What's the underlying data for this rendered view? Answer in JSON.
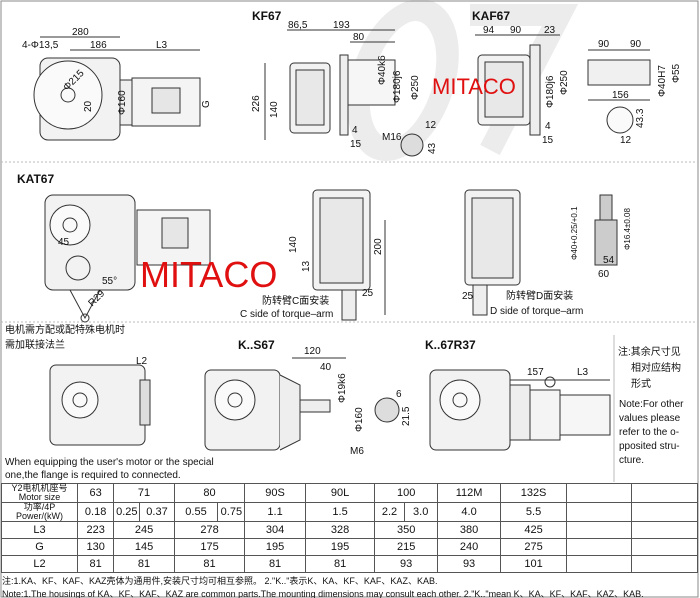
{
  "watermark": "07",
  "brand_overlay": {
    "top": "MITACO",
    "middle": "MITACO"
  },
  "main_view": {
    "d280": "280",
    "holes": "4-Φ13,5",
    "d186": "186",
    "l3": "L3",
    "phi215": "Φ215",
    "d20": "20",
    "phi160": "Φ160",
    "g": "G"
  },
  "kf67": {
    "title": "KF67",
    "d86": "86,5",
    "d193": "193",
    "d80": "80",
    "d226": "226",
    "d140": "140",
    "phi40": "Φ40k6",
    "phi180": "Φ180j6",
    "phi250": "Φ250",
    "d4": "4",
    "d15": "15",
    "m16": "M16",
    "d12": "12",
    "d43": "43"
  },
  "kaf67": {
    "title": "KAF67",
    "d94": "94",
    "d90": "90",
    "d23": "23",
    "phi180": "Φ180j6",
    "phi250": "Φ250",
    "d4": "4",
    "d15": "15",
    "s90a": "90",
    "s90b": "90",
    "phi40h7": "Φ40H7",
    "phi55": "Φ55",
    "d156": "156",
    "d43_3": "43.3",
    "d12": "12"
  },
  "kat67": {
    "title": "KAT67",
    "d45": "45",
    "r29": "R29",
    "a55": "55°",
    "d140": "140",
    "d13": "13",
    "d200": "200",
    "d25c": "25",
    "c_side_cn": "防转臂C面安装",
    "c_side_en": "C side of torque–arm",
    "d25d": "25",
    "d_side_cn": "防转臂D面安装",
    "d_side_en": "D side of torque–arm",
    "phi40": "Φ40+0.25/+0.1",
    "phi16": "Φ16.4±0.08",
    "d54": "54",
    "d60": "60"
  },
  "flange_note": {
    "cn1": "电机需方配或配特殊电机时",
    "cn2": "需加联接法兰",
    "l2": "L2",
    "en1": "When equipping the user's motor or the special",
    "en2": "one,the flange is required to connected."
  },
  "ks67": {
    "title": "K..S67",
    "d120": "120",
    "d40": "40",
    "phi19": "Φ19k6",
    "phi160": "Φ160",
    "m6": "M6",
    "d6": "6",
    "d21": "21.5"
  },
  "k67r37": {
    "title": "K..67R37",
    "d157": "157",
    "l3": "L3"
  },
  "side_note": {
    "cn1": "注:其余尺寸见",
    "cn2": "相对应结构",
    "cn3": "形式",
    "en1": "Note:For other",
    "en2": "values please",
    "en3": "refer to the o-",
    "en4": "pposited stru-",
    "en5": "cture."
  },
  "table": {
    "motor_size_label": "Y2电机机座号 Motor size",
    "power_label": "功率/4P Power/(kW)",
    "motor_sizes": [
      "63",
      "71",
      "80",
      "90S",
      "90L",
      "100",
      "112M",
      "132S"
    ],
    "powers": [
      "0.18",
      "0.25",
      "0.37",
      "0.55",
      "0.75",
      "1.1",
      "1.5",
      "2.2",
      "3.0",
      "4.0",
      "5.5"
    ],
    "rows": [
      {
        "label": "L3",
        "values": [
          "223",
          "245",
          "278",
          "304",
          "328",
          "350",
          "380",
          "425"
        ]
      },
      {
        "label": "G",
        "values": [
          "130",
          "145",
          "175",
          "195",
          "195",
          "215",
          "240",
          "275"
        ]
      },
      {
        "label": "L2",
        "values": [
          "81",
          "81",
          "81",
          "81",
          "81",
          "93",
          "93",
          "101"
        ]
      }
    ]
  },
  "footnotes": {
    "cn": "注:1.KA、KF、KAF、KAZ壳体为通用件,安装尺寸均可相互参照。  2.\"K..\"表示K、KA、KF、KAF、KAZ、KAB.",
    "en": "Note:1.The housings of KA、KF、KAF、KAZ are common parts.The mounting dimensions may consult each other. 2.\"K..\"mean K、KA、KF、KAF、KAZ、KAB."
  }
}
